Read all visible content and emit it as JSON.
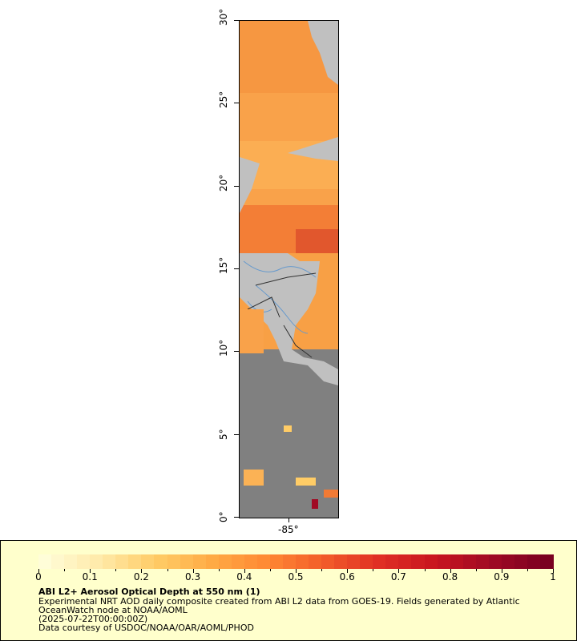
{
  "map": {
    "lat_labels": [
      "0°",
      "5°",
      "10°",
      "15°",
      "20°",
      "25°",
      "30°"
    ],
    "lon_labels": [
      "-85°"
    ],
    "colors": {
      "ocean_missing": "#808080",
      "land": "#c0c0c0",
      "rivers": "#6699cc",
      "borders": "#303030"
    }
  },
  "legend": {
    "title": "ABI L2+ Aerosol Optical Depth at 550 nm (1)",
    "line1": "Experimental NRT AOD daily composite created from ABI L2 data from GOES-19. Fields generated by Atlantic",
    "line2": "OceanWatch node at NOAA/AOML",
    "line3": "(2025-07-22T00:00:00Z)",
    "line4": "Data courtesy of USDOC/NOAA/OAR/AOML/PHOD",
    "colorbar_labels": [
      "0",
      "0.1",
      "0.2",
      "0.3",
      "0.4",
      "0.5",
      "0.6",
      "0.7",
      "0.8",
      "0.9",
      "1"
    ],
    "colorbar_range": [
      0,
      1
    ],
    "colormap": [
      "#fffdd8",
      "#ffe9a8",
      "#ffcc66",
      "#ffaa44",
      "#ff8833",
      "#f25c2a",
      "#e02f24",
      "#c8151f",
      "#a00a24",
      "#7a0020"
    ]
  }
}
